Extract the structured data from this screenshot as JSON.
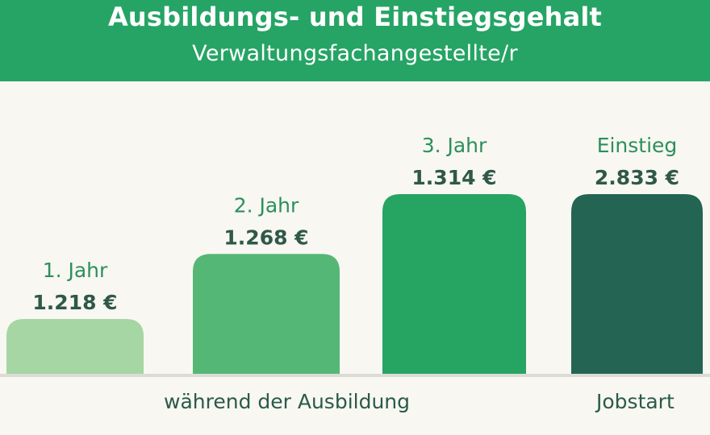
{
  "header": {
    "title": "Ausbildungs- und Einstiegsgehalt",
    "subtitle": "Verwaltungsfachangestellte/r"
  },
  "groups": {
    "training": "während der Ausbildung",
    "jobstart": "Jobstart"
  },
  "colors": {
    "header_bg": "#26a465",
    "background": "#f8f7f2",
    "bars": [
      "#a6d6a3",
      "#54b776",
      "#25a462",
      "#236453"
    ]
  },
  "chart_data": {
    "type": "bar",
    "title": "Ausbildungs- und Einstiegsgehalt",
    "subtitle": "Verwaltungsfachangestellte/r",
    "categories": [
      "1. Jahr",
      "2. Jahr",
      "3. Jahr",
      "Einstieg"
    ],
    "values": [
      1218,
      1268,
      1314,
      2833
    ],
    "value_labels": [
      "1.218 €",
      "1.268 €",
      "1.314 €",
      "2.833 €"
    ],
    "unit": "€",
    "grid": false,
    "legend": "none"
  }
}
